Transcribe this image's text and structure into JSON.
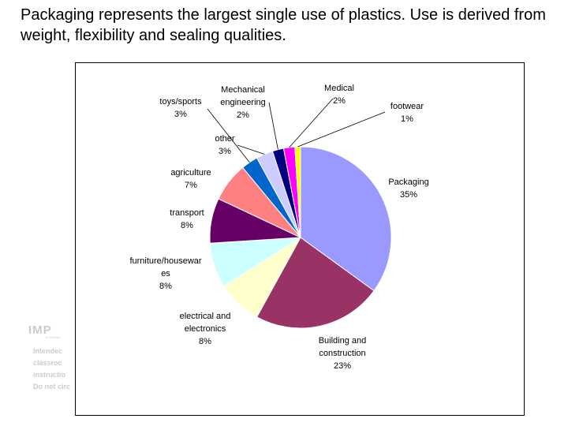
{
  "heading": "Packaging represents the largest single use of plastics.  Use is derived from weight, flexibility and sealing qualities.",
  "watermark": {
    "logo": "IMP",
    "sub": "of Plastics",
    "text": "Intendec\nclassroc\ninstructio\nDo not circ"
  },
  "chart_data": {
    "type": "pie",
    "title": "",
    "slices": [
      {
        "lines": [
          "Packaging",
          "35%"
        ],
        "value": 35,
        "color": "#9999ff"
      },
      {
        "lines": [
          "Building and",
          "construction",
          "23%"
        ],
        "value": 23,
        "color": "#993366"
      },
      {
        "lines": [
          "electrical and",
          "electronics",
          "8%"
        ],
        "value": 8,
        "color": "#ffffcc"
      },
      {
        "lines": [
          "furniture/housewar",
          "es",
          "8%"
        ],
        "value": 8,
        "color": "#ccffff"
      },
      {
        "lines": [
          "transport",
          "8%"
        ],
        "value": 8,
        "color": "#660066"
      },
      {
        "lines": [
          "agriculture",
          "7%"
        ],
        "value": 7,
        "color": "#ff8080"
      },
      {
        "lines": [
          "toys/sports",
          "3%"
        ],
        "value": 3,
        "color": "#0066cc"
      },
      {
        "lines": [
          "other",
          "3%"
        ],
        "value": 3,
        "color": "#ccccff"
      },
      {
        "lines": [
          "Mechanical",
          "engineering",
          "2%"
        ],
        "value": 2,
        "color": "#000080"
      },
      {
        "lines": [
          "Medical",
          "2%"
        ],
        "value": 2,
        "color": "#ff00ff"
      },
      {
        "lines": [
          "footwear",
          "1%"
        ],
        "value": 1,
        "color": "#ffff00"
      }
    ],
    "start": "12 o'clock",
    "direction": "clockwise",
    "legend": "none"
  }
}
